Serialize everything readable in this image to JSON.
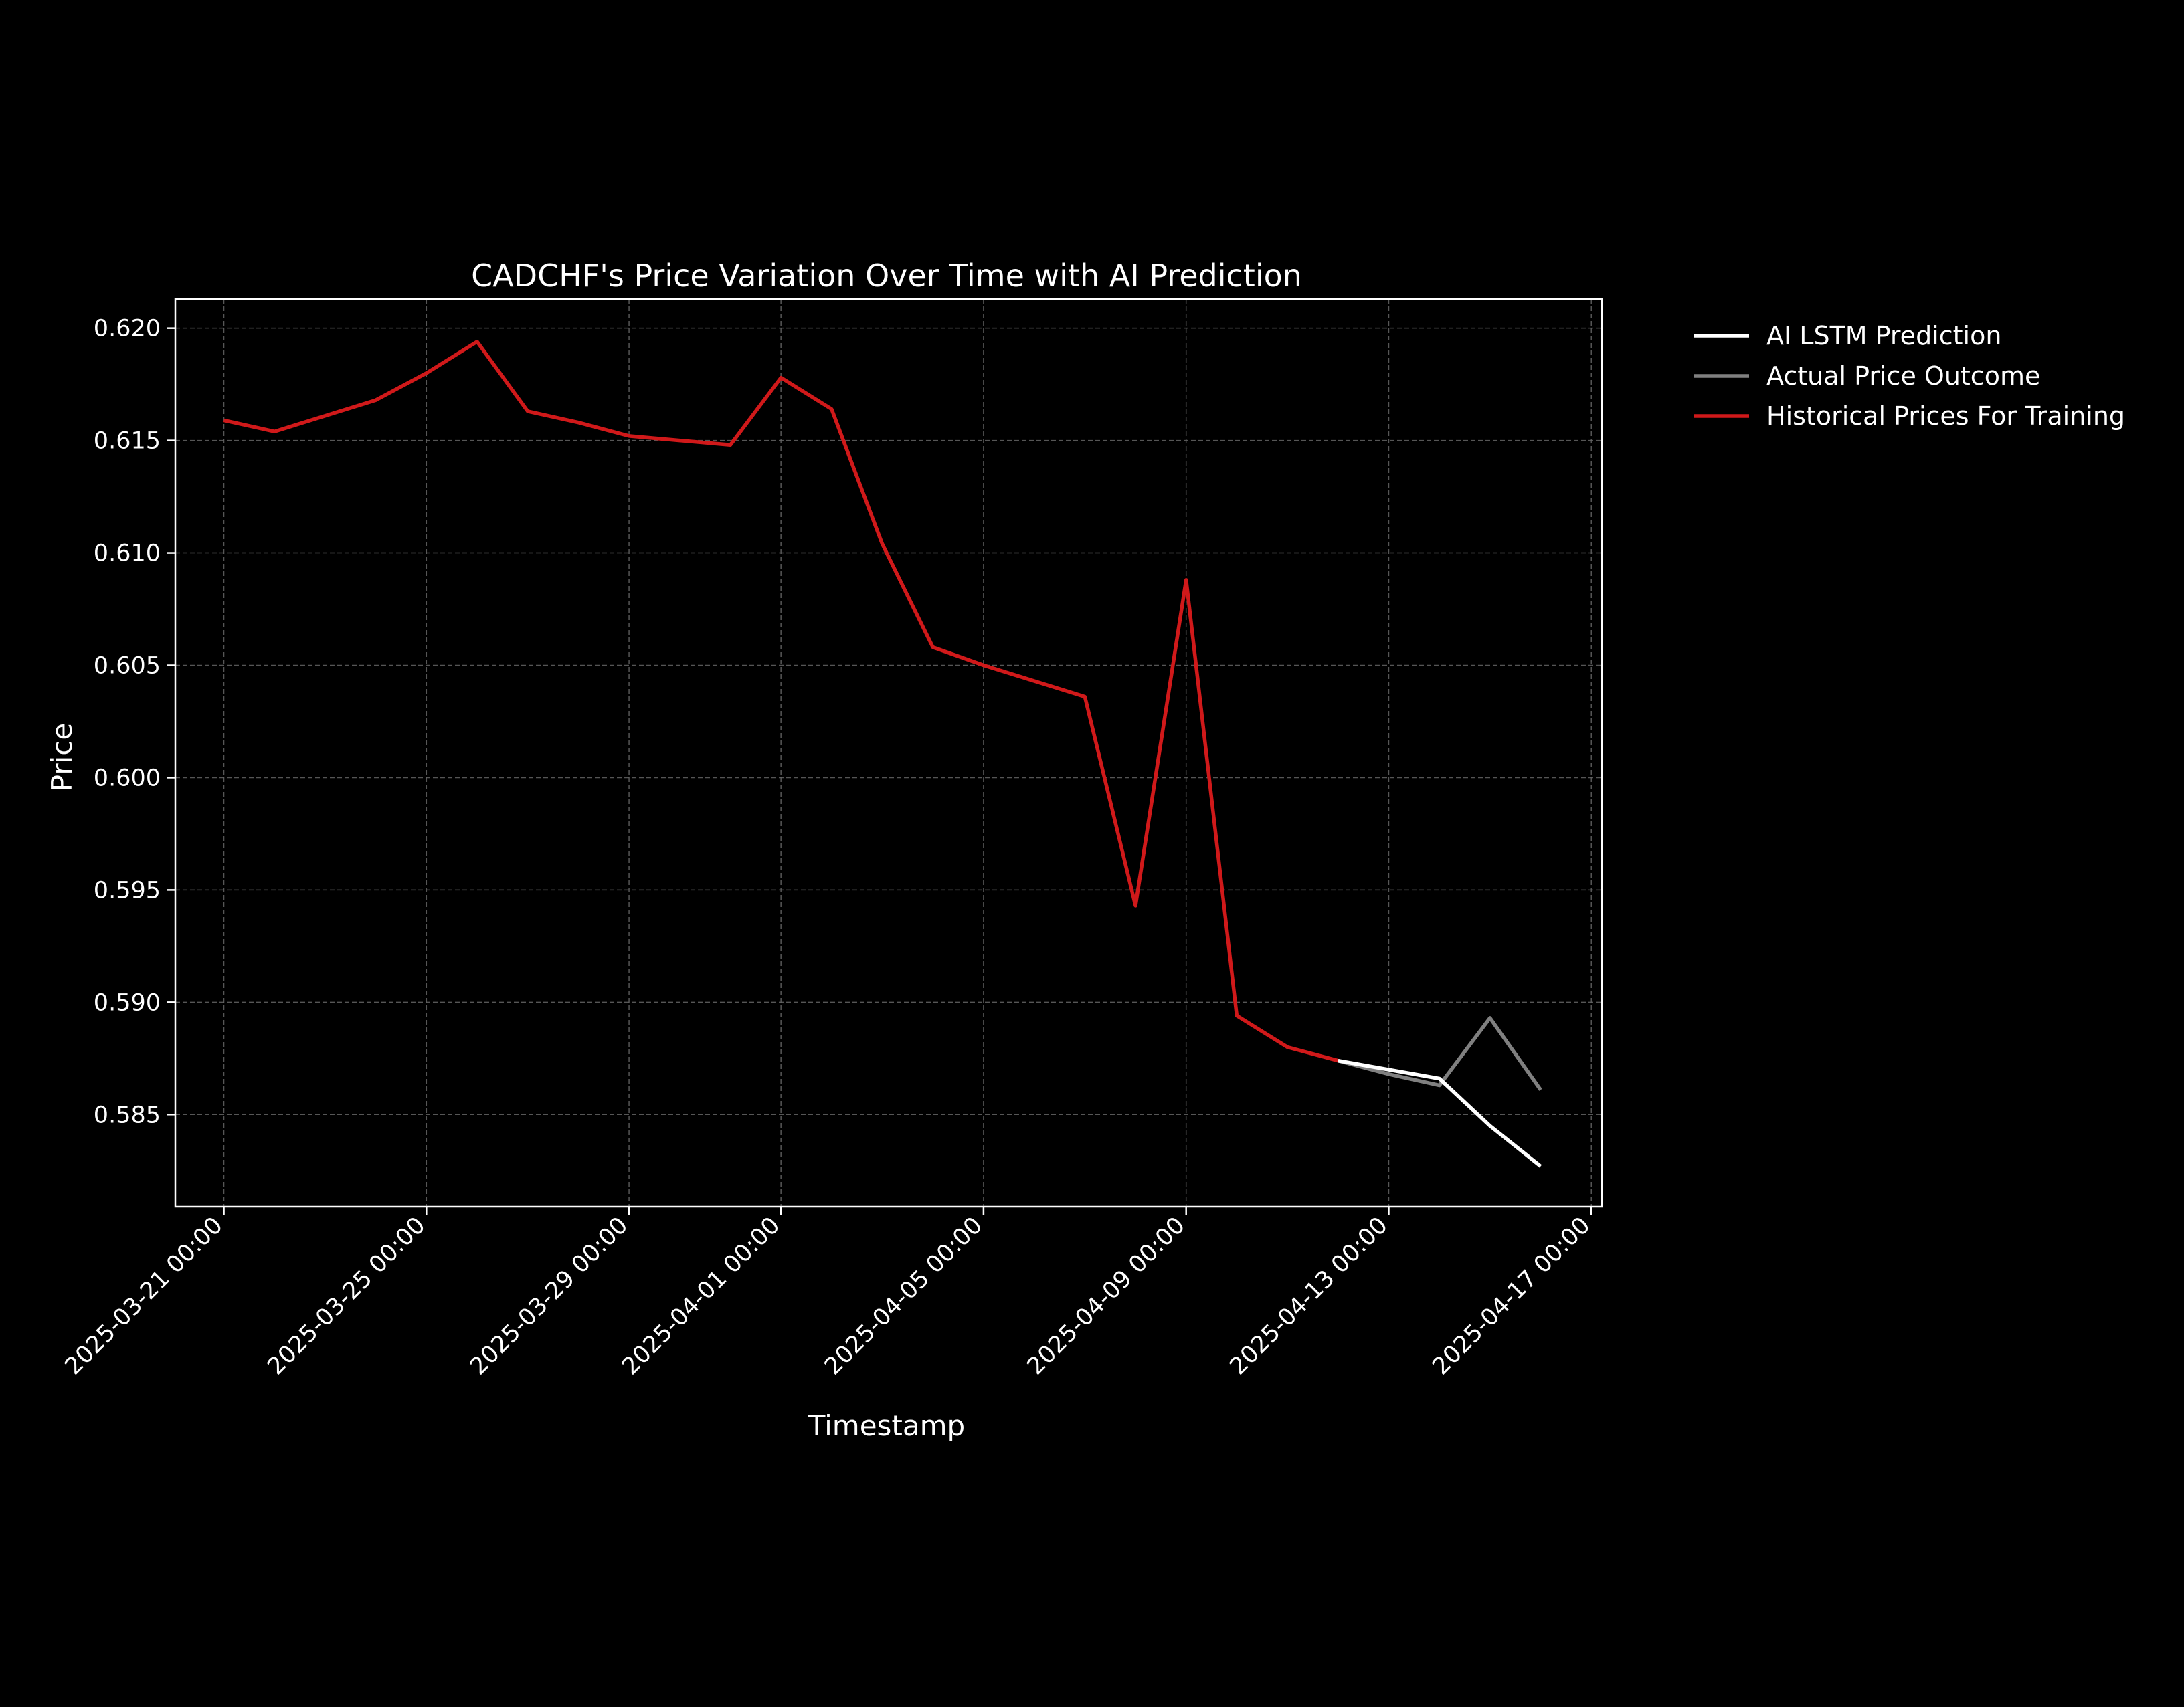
{
  "chart_data": {
    "type": "line",
    "title": "CADCHF's Price Variation Over Time with AI Prediction",
    "xlabel": "Timestamp",
    "ylabel": "Price",
    "x_range": [
      "2025-03-20 01:00",
      "2025-04-17 05:00"
    ],
    "ylim": [
      0.5809,
      0.6213
    ],
    "y_ticks": [
      0.585,
      0.59,
      0.595,
      0.6,
      0.605,
      0.61,
      0.615,
      0.62
    ],
    "y_tick_labels": [
      "0.585",
      "0.590",
      "0.595",
      "0.600",
      "0.605",
      "0.610",
      "0.615",
      "0.620"
    ],
    "x_ticks": [
      "2025-03-21 00:00",
      "2025-03-25 00:00",
      "2025-03-29 00:00",
      "2025-04-01 00:00",
      "2025-04-05 00:00",
      "2025-04-09 00:00",
      "2025-04-13 00:00",
      "2025-04-17 00:00"
    ],
    "grid": true,
    "legend_position": "outside-right-top",
    "series": [
      {
        "name": "AI LSTM Prediction",
        "color": "#ffffff",
        "points": [
          {
            "x": "2025-04-12 00:00",
            "y": 0.5874
          },
          {
            "x": "2025-04-13 00:00",
            "y": 0.587
          },
          {
            "x": "2025-04-14 00:00",
            "y": 0.5866
          },
          {
            "x": "2025-04-15 00:00",
            "y": 0.5845
          },
          {
            "x": "2025-04-16 00:00",
            "y": 0.5827
          }
        ]
      },
      {
        "name": "Actual Price Outcome",
        "color": "#808080",
        "points": [
          {
            "x": "2025-04-12 00:00",
            "y": 0.5874
          },
          {
            "x": "2025-04-13 00:00",
            "y": 0.5868
          },
          {
            "x": "2025-04-14 00:00",
            "y": 0.5863
          },
          {
            "x": "2025-04-15 00:00",
            "y": 0.5893
          },
          {
            "x": "2025-04-16 00:00",
            "y": 0.5861
          }
        ]
      },
      {
        "name": "Historical Prices For Training",
        "color": "#d0191a",
        "points": [
          {
            "x": "2025-03-21 00:00",
            "y": 0.6159
          },
          {
            "x": "2025-03-22 00:00",
            "y": 0.6154
          },
          {
            "x": "2025-03-23 00:00",
            "y": 0.6161
          },
          {
            "x": "2025-03-24 00:00",
            "y": 0.6168
          },
          {
            "x": "2025-03-25 00:00",
            "y": 0.618
          },
          {
            "x": "2025-03-26 00:00",
            "y": 0.6194
          },
          {
            "x": "2025-03-27 00:00",
            "y": 0.6163
          },
          {
            "x": "2025-03-28 00:00",
            "y": 0.6158
          },
          {
            "x": "2025-03-29 00:00",
            "y": 0.6152
          },
          {
            "x": "2025-03-30 00:00",
            "y": 0.615
          },
          {
            "x": "2025-03-31 00:00",
            "y": 0.6148
          },
          {
            "x": "2025-04-01 00:00",
            "y": 0.6178
          },
          {
            "x": "2025-04-02 00:00",
            "y": 0.6164
          },
          {
            "x": "2025-04-03 00:00",
            "y": 0.6104
          },
          {
            "x": "2025-04-04 00:00",
            "y": 0.6058
          },
          {
            "x": "2025-04-05 00:00",
            "y": 0.605
          },
          {
            "x": "2025-04-06 00:00",
            "y": 0.6043
          },
          {
            "x": "2025-04-07 00:00",
            "y": 0.6036
          },
          {
            "x": "2025-04-08 00:00",
            "y": 0.5943
          },
          {
            "x": "2025-04-09 00:00",
            "y": 0.6088
          },
          {
            "x": "2025-04-10 00:00",
            "y": 0.5894
          },
          {
            "x": "2025-04-11 00:00",
            "y": 0.588
          },
          {
            "x": "2025-04-12 00:00",
            "y": 0.5874
          }
        ]
      }
    ]
  }
}
